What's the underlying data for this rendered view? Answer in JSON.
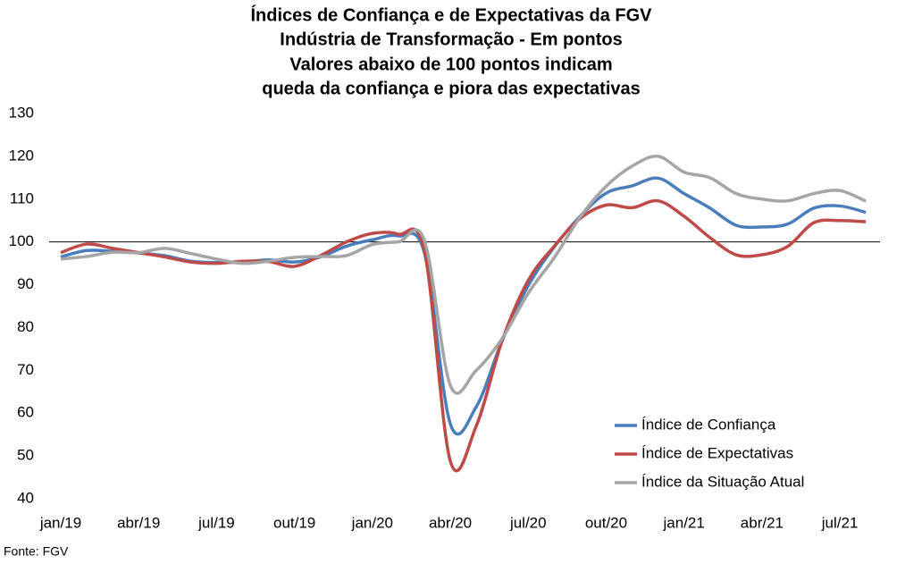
{
  "chart_data": {
    "type": "line",
    "title": [
      "Índices de Confiança e de Expectativas da FGV",
      "Indústria de Transformação - Em pontos",
      "Valores abaixo de 100 pontos indicam",
      "queda da confiança e piora das expectativas"
    ],
    "source": "Fonte: FGV",
    "categories": [
      "jan/19",
      null,
      null,
      "abr/19",
      null,
      null,
      "jul/19",
      null,
      null,
      "out/19",
      null,
      null,
      "jan/20",
      null,
      null,
      "abr/20",
      null,
      null,
      "jul/20",
      null,
      null,
      "out/20",
      null,
      null,
      "jan/21",
      null,
      null,
      "abr/21",
      null,
      null,
      "jul/21",
      null
    ],
    "series": [
      {
        "name": "Índice de Confiança",
        "color": "#4a7ebb",
        "values": [
          96.5,
          98,
          97.8,
          97.4,
          96.8,
          95.5,
          95.2,
          95.3,
          95.8,
          95.3,
          96.5,
          99,
          100.5,
          101.4,
          97.5,
          57.5,
          61.5,
          77,
          89.8,
          98.8,
          106,
          111.4,
          113.1,
          114.9,
          111.3,
          107.9,
          103.9,
          103.5,
          104.2,
          107.9,
          108.4,
          106.9
        ]
      },
      {
        "name": "Índice de Expectativas",
        "color": "#be4b48",
        "values": [
          97.5,
          99.5,
          98.5,
          97.5,
          96.5,
          95.3,
          95,
          95.5,
          95.4,
          94.3,
          96.8,
          100,
          102,
          101.8,
          98,
          48.8,
          57,
          77,
          91,
          99,
          105.5,
          108.6,
          108,
          109.6,
          106,
          101,
          97,
          97,
          99,
          104.5,
          105,
          104.7
        ]
      },
      {
        "name": "Índice da Situação Atual",
        "color": "#a5a5a5",
        "values": [
          96,
          96.6,
          97.6,
          97.5,
          98.5,
          97.3,
          96,
          95,
          95.5,
          96.4,
          96.6,
          96.8,
          99.4,
          100,
          100.4,
          66.5,
          70,
          77.5,
          88,
          96.3,
          105.8,
          113,
          117.7,
          120,
          116.3,
          115,
          111.3,
          110,
          109.6,
          111.3,
          112,
          109.5
        ]
      }
    ],
    "ylim": [
      40,
      130
    ],
    "yticks": [
      40,
      50,
      60,
      70,
      80,
      90,
      100,
      110,
      120,
      130
    ],
    "reference_line": 100,
    "grid": false,
    "legend": "lower right"
  }
}
